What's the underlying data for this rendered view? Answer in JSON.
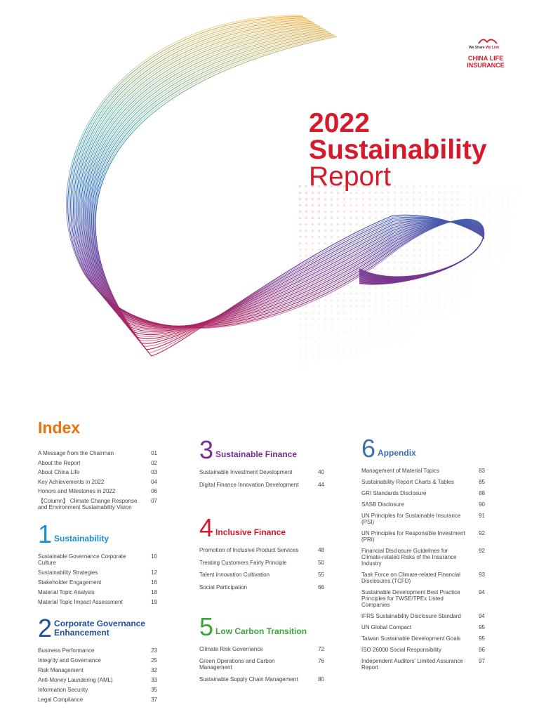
{
  "logo": {
    "tagline_1": "We Share",
    "tagline_2": "We Link",
    "name_1": "CHINA LIFE",
    "name_2": "INSURANCE"
  },
  "cover": {
    "year": "2022",
    "title_1": "Sustainability",
    "title_2": "Report"
  },
  "index": {
    "title": "Index",
    "intro": [
      {
        "label": "A Message from the Chairman",
        "page": "01"
      },
      {
        "label": "About the Report",
        "page": "02"
      },
      {
        "label": "About China Life",
        "page": "03"
      },
      {
        "label": "Key Achievements in 2022",
        "page": "04"
      },
      {
        "label": "Honors and Milestones in 2022",
        "page": "06"
      },
      {
        "label": "【Column】 Climate Change Response and Environment Sustainability Vision",
        "page": "07"
      }
    ],
    "sections": [
      {
        "number": "1",
        "title": "Sustainability",
        "items": [
          {
            "label": "Sustainable Governance Corporate Culture",
            "page": "10"
          },
          {
            "label": "Sustainability Strategies",
            "page": "12"
          },
          {
            "label": "Stakeholder Engagement",
            "page": "16"
          },
          {
            "label": "Material Topic Analysis",
            "page": "18"
          },
          {
            "label": "Material Topic Impact Assessment",
            "page": "19"
          }
        ]
      },
      {
        "number": "2",
        "title": "Corporate Governance Enhancement",
        "items": [
          {
            "label": "Business Performance",
            "page": "23"
          },
          {
            "label": "Integrity and Governance",
            "page": "25"
          },
          {
            "label": "Risk Management",
            "page": "32"
          },
          {
            "label": "Anti-Money Laundering (AML)",
            "page": "33"
          },
          {
            "label": "Information Security",
            "page": "35"
          },
          {
            "label": "Legal Compliance",
            "page": "37"
          }
        ]
      },
      {
        "number": "3",
        "title": "Sustainable Finance",
        "items": [
          {
            "label": "Sustainable Investment Development",
            "page": "40"
          },
          {
            "label": "Digital Finance Innovation Development",
            "page": "44"
          }
        ]
      },
      {
        "number": "4",
        "title": "Inclusive Finance",
        "items": [
          {
            "label": "Promotion of Inclusive Product Services",
            "page": "48"
          },
          {
            "label": "Treating Customers Fairly Principle",
            "page": "50"
          },
          {
            "label": "Talent Innovation Cultivation",
            "page": "55"
          },
          {
            "label": "Social Participation",
            "page": "66"
          }
        ]
      },
      {
        "number": "5",
        "title": "Low Carbon Transition",
        "items": [
          {
            "label": "Climate Risk Governance",
            "page": "72"
          },
          {
            "label": "Green Operations and Carbon Management",
            "page": "76"
          },
          {
            "label": "Sustainable Supply Chain Management",
            "page": "80"
          }
        ]
      },
      {
        "number": "6",
        "title": "Appendix",
        "items": [
          {
            "label": "Management of Material Topics",
            "page": "83"
          },
          {
            "label": "Sustainability Report Charts & Tables",
            "page": "85"
          },
          {
            "label": "GRI Standards Disclosure",
            "page": "88"
          },
          {
            "label": "SASB Disclosure",
            "page": "90"
          },
          {
            "label": "UN Principles for Sustainable Insurance (PSI)",
            "page": "91"
          },
          {
            "label": "UN Principles for Responsible Investment (PRI)",
            "page": "92"
          },
          {
            "label": "Financial Disclosure Guidelines for Climate-related Risks of the Insurance Industry",
            "page": "92"
          },
          {
            "label": "Task Force on Climate-related Financial Disclosures (TCFD)",
            "page": "93"
          },
          {
            "label": "Sustainable Development Best Practice Principles for TWSE/TPEx Listed Companies",
            "page": "94"
          },
          {
            "label": "IFRS Sustainability Disclosure Standard",
            "page": "94"
          },
          {
            "label": "UN Global Compact",
            "page": "95"
          },
          {
            "label": "Taiwan Sustainable Development Goals",
            "page": "95"
          },
          {
            "label": "ISO 26000 Social Responsibility",
            "page": "96"
          },
          {
            "label": "Independent Auditors' Limited Assurance Report",
            "page": "97"
          }
        ]
      }
    ]
  }
}
